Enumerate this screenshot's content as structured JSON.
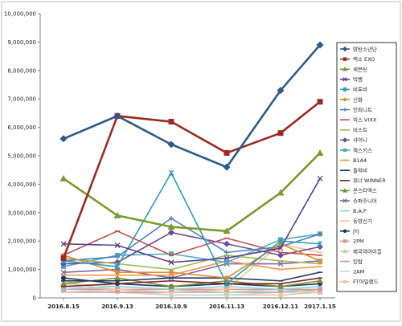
{
  "chart_data": {
    "type": "line",
    "title": "",
    "xlabel": "",
    "ylabel": "",
    "x": [
      "2016.8.15",
      "2016.9.13",
      "2016.10.9",
      "2016.11.13",
      "2016.12.11",
      "2017.1.15"
    ],
    "ylim": [
      0,
      10000000
    ],
    "y_ticks": [
      "0",
      "1,000,000",
      "2,000,000",
      "3,000,000",
      "4,000,000",
      "5,000,000",
      "6,000,000",
      "7,000,000",
      "8,000,000",
      "9,000,000",
      "10,000,000"
    ],
    "grid": false,
    "legend_position": "right",
    "series": [
      {
        "name": "방탄소년단",
        "color": "#2e5a8a",
        "marker": "diamond",
        "values": [
          5600000,
          6400000,
          5400000,
          4600000,
          7300000,
          8900000
        ]
      },
      {
        "name": "엑소 EXO",
        "color": "#9b2a22",
        "marker": "square",
        "values": [
          1400000,
          6400000,
          6200000,
          5100000,
          5800000,
          6900000
        ]
      },
      {
        "name": "세븐틴",
        "color": "#7a9a2e",
        "marker": "triangle",
        "values": [
          4200000,
          2900000,
          2500000,
          2350000,
          3700000,
          5100000
        ]
      },
      {
        "name": "빅뱅",
        "color": "#5e3f8a",
        "marker": "x",
        "values": [
          1900000,
          1850000,
          1250000,
          1400000,
          1750000,
          4200000
        ]
      },
      {
        "name": "비투비",
        "color": "#2f9bb8",
        "marker": "star",
        "values": [
          1300000,
          1100000,
          4400000,
          500000,
          2000000,
          1900000
        ]
      },
      {
        "name": "신화",
        "color": "#e08a2e",
        "marker": "circle",
        "values": [
          1500000,
          900000,
          900000,
          700000,
          1900000,
          1300000
        ]
      },
      {
        "name": "인피니트",
        "color": "#4f81bd",
        "marker": "plus",
        "values": [
          1300000,
          1450000,
          2800000,
          1600000,
          1800000,
          2250000
        ]
      },
      {
        "name": "빅스 VIXX",
        "color": "#c0504d",
        "marker": "line",
        "values": [
          1500000,
          2350000,
          1500000,
          2100000,
          1600000,
          1500000
        ]
      },
      {
        "name": "비스트",
        "color": "#9bbb59",
        "marker": "line",
        "values": [
          1400000,
          1200000,
          1000000,
          1500000,
          1300000,
          1200000
        ]
      },
      {
        "name": "샤이니",
        "color": "#6b4c9a",
        "marker": "diamond",
        "values": [
          1200000,
          1250000,
          2300000,
          1900000,
          1500000,
          1800000
        ]
      },
      {
        "name": "젝스키스",
        "color": "#4bacc6",
        "marker": "square",
        "values": [
          1100000,
          1500000,
          1550000,
          1250000,
          2050000,
          2250000
        ]
      },
      {
        "name": "B1A4",
        "color": "#f79646",
        "marker": "line",
        "values": [
          800000,
          800000,
          800000,
          1300000,
          1000000,
          1100000
        ]
      },
      {
        "name": "틀럭비",
        "color": "#1f3864",
        "marker": "line",
        "values": [
          600000,
          600000,
          700000,
          700000,
          600000,
          900000
        ]
      },
      {
        "name": "위너 WINNER",
        "color": "#7f2320",
        "marker": "line",
        "values": [
          400000,
          500000,
          600000,
          500000,
          500000,
          700000
        ]
      },
      {
        "name": "몬스타엑스",
        "color": "#76923c",
        "marker": "triangle",
        "values": [
          500000,
          700000,
          400000,
          600000,
          400000,
          600000
        ]
      },
      {
        "name": "슈퍼주니어",
        "color": "#8064a2",
        "marker": "x",
        "values": [
          900000,
          1000000,
          700000,
          1200000,
          1200000,
          1300000
        ]
      },
      {
        "name": "B.A.P",
        "color": "#92cddc",
        "marker": "line",
        "values": [
          300000,
          400000,
          300000,
          400000,
          300000,
          400000
        ]
      },
      {
        "name": "동방신기",
        "color": "#fabf8f",
        "marker": "line",
        "values": [
          200000,
          300000,
          200000,
          300000,
          1900000,
          1600000
        ]
      },
      {
        "name": "JYJ",
        "color": "#17375e",
        "marker": "circle",
        "values": [
          700000,
          500000,
          400000,
          500000,
          400000,
          500000
        ]
      },
      {
        "name": "2PM",
        "color": "#d99594",
        "marker": "square",
        "values": [
          300000,
          300000,
          300000,
          300000,
          300000,
          300000
        ]
      },
      {
        "name": "제국의아이들",
        "color": "#c3d69b",
        "marker": "triangle",
        "values": [
          500000,
          400000,
          300000,
          200000,
          300000,
          200000
        ]
      },
      {
        "name": "틴탑",
        "color": "#b2a1c7",
        "marker": "line",
        "values": [
          200000,
          200000,
          200000,
          200000,
          200000,
          300000
        ]
      },
      {
        "name": "2AM",
        "color": "#b7dee8",
        "marker": "line",
        "values": [
          400000,
          300000,
          100000,
          100000,
          200000,
          200000
        ]
      },
      {
        "name": "FT아일랜드",
        "color": "#fac08f",
        "marker": "circle",
        "values": [
          600000,
          200000,
          100000,
          100000,
          100000,
          200000
        ]
      }
    ]
  }
}
